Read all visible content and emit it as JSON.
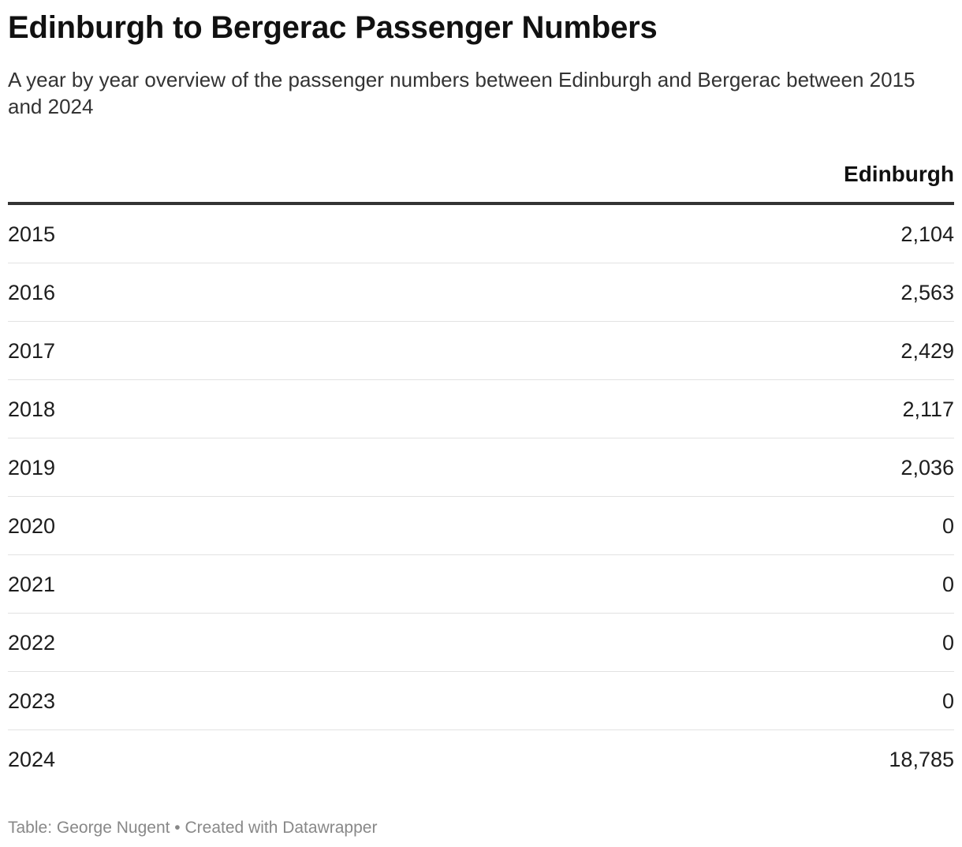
{
  "header": {
    "title": "Edinburgh to Bergerac Passenger Numbers",
    "subtitle": "A year by year overview of the passenger numbers between Edinburgh and Bergerac between 2015 and 2024"
  },
  "chart_data": {
    "type": "table",
    "title": "Edinburgh to Bergerac Passenger Numbers",
    "subtitle": "A year by year overview of the passenger numbers between Edinburgh and Bergerac between 2015 and 2024",
    "columns": [
      "",
      "Edinburgh"
    ],
    "value_header": "Edinburgh",
    "rows": [
      {
        "year": "2015",
        "value": "2,104"
      },
      {
        "year": "2016",
        "value": "2,563"
      },
      {
        "year": "2017",
        "value": "2,429"
      },
      {
        "year": "2018",
        "value": "2,117"
      },
      {
        "year": "2019",
        "value": "2,036"
      },
      {
        "year": "2020",
        "value": "0"
      },
      {
        "year": "2021",
        "value": "0"
      },
      {
        "year": "2022",
        "value": "0"
      },
      {
        "year": "2023",
        "value": "0"
      },
      {
        "year": "2024",
        "value": "18,785"
      }
    ]
  },
  "footer": {
    "text": "Table: George Nugent • Created with Datawrapper"
  }
}
